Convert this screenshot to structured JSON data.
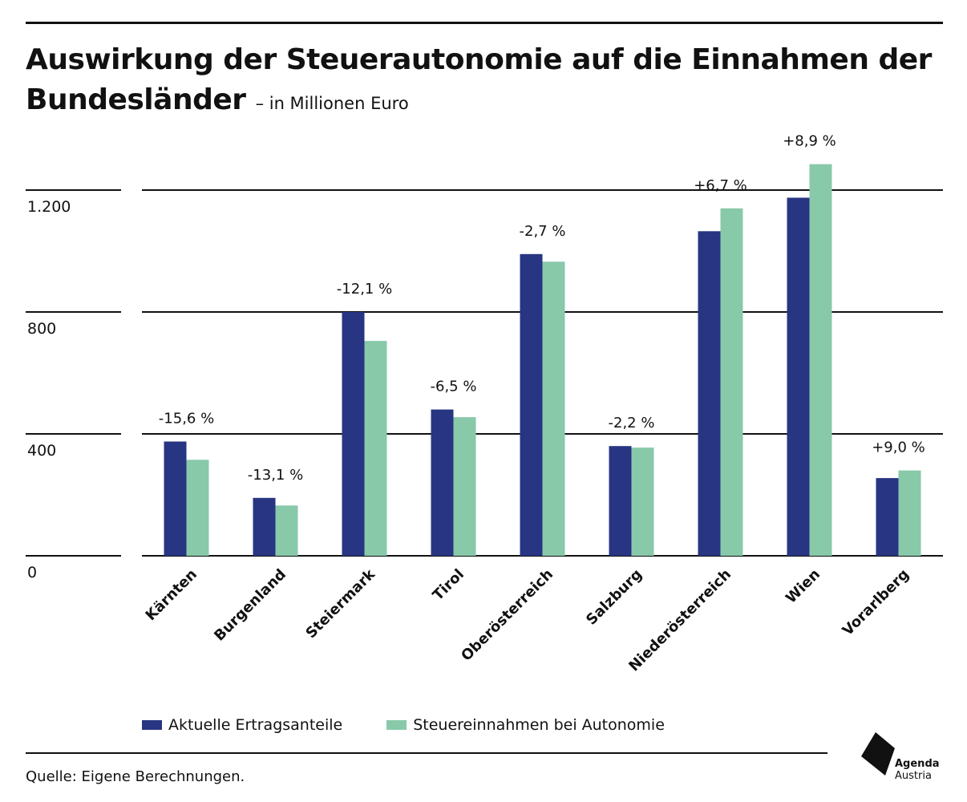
{
  "header": {
    "title_line1": "Auswirkung der Steuerautonomie auf die Einnahmen der",
    "title_line2": "Bundesländer",
    "subtitle": "– in Millionen Euro"
  },
  "colors": {
    "series_current": "#283582",
    "series_autonomy": "#88c9aa",
    "grid": "#111111",
    "text": "#111111"
  },
  "chart_data": {
    "type": "bar",
    "title": "Auswirkung der Steuerautonomie auf die Einnahmen der Bundesländer",
    "subtitle": "– in Millionen Euro",
    "categories": [
      "Kärnten",
      "Burgenland",
      "Steiermark",
      "Tirol",
      "Oberösterreich",
      "Salzburg",
      "Niederösterreich",
      "Wien",
      "Vorarlberg"
    ],
    "series": [
      {
        "name": "Aktuelle Ertragsanteile",
        "values": [
          375,
          190,
          800,
          480,
          990,
          360,
          1065,
          1175,
          255
        ]
      },
      {
        "name": "Steuereinnahmen bei Autonomie",
        "values": [
          315,
          165,
          705,
          455,
          965,
          355,
          1140,
          1285,
          280
        ]
      }
    ],
    "data_labels": [
      "-15,6 %",
      "-13,1 %",
      "-12,1 %",
      "-6,5 %",
      "-2,7 %",
      "-2,2 %",
      "+6,7 %",
      "+8,9 %",
      "+9,0 %"
    ],
    "yticks": [
      0,
      400,
      800,
      1200
    ],
    "ytick_labels": [
      "0",
      "400",
      "800",
      "1.200"
    ],
    "ylim": [
      0,
      1400
    ],
    "grid": true,
    "legend_position": "bottom-left"
  },
  "legend": {
    "items": [
      {
        "label": "Aktuelle Ertragsanteile",
        "color": "#283582"
      },
      {
        "label": "Steuereinnahmen bei Autonomie",
        "color": "#88c9aa"
      }
    ]
  },
  "footer": {
    "source": "Quelle: Eigene Berechnungen.",
    "logo_line1": "Agenda",
    "logo_line2": "Austria"
  }
}
